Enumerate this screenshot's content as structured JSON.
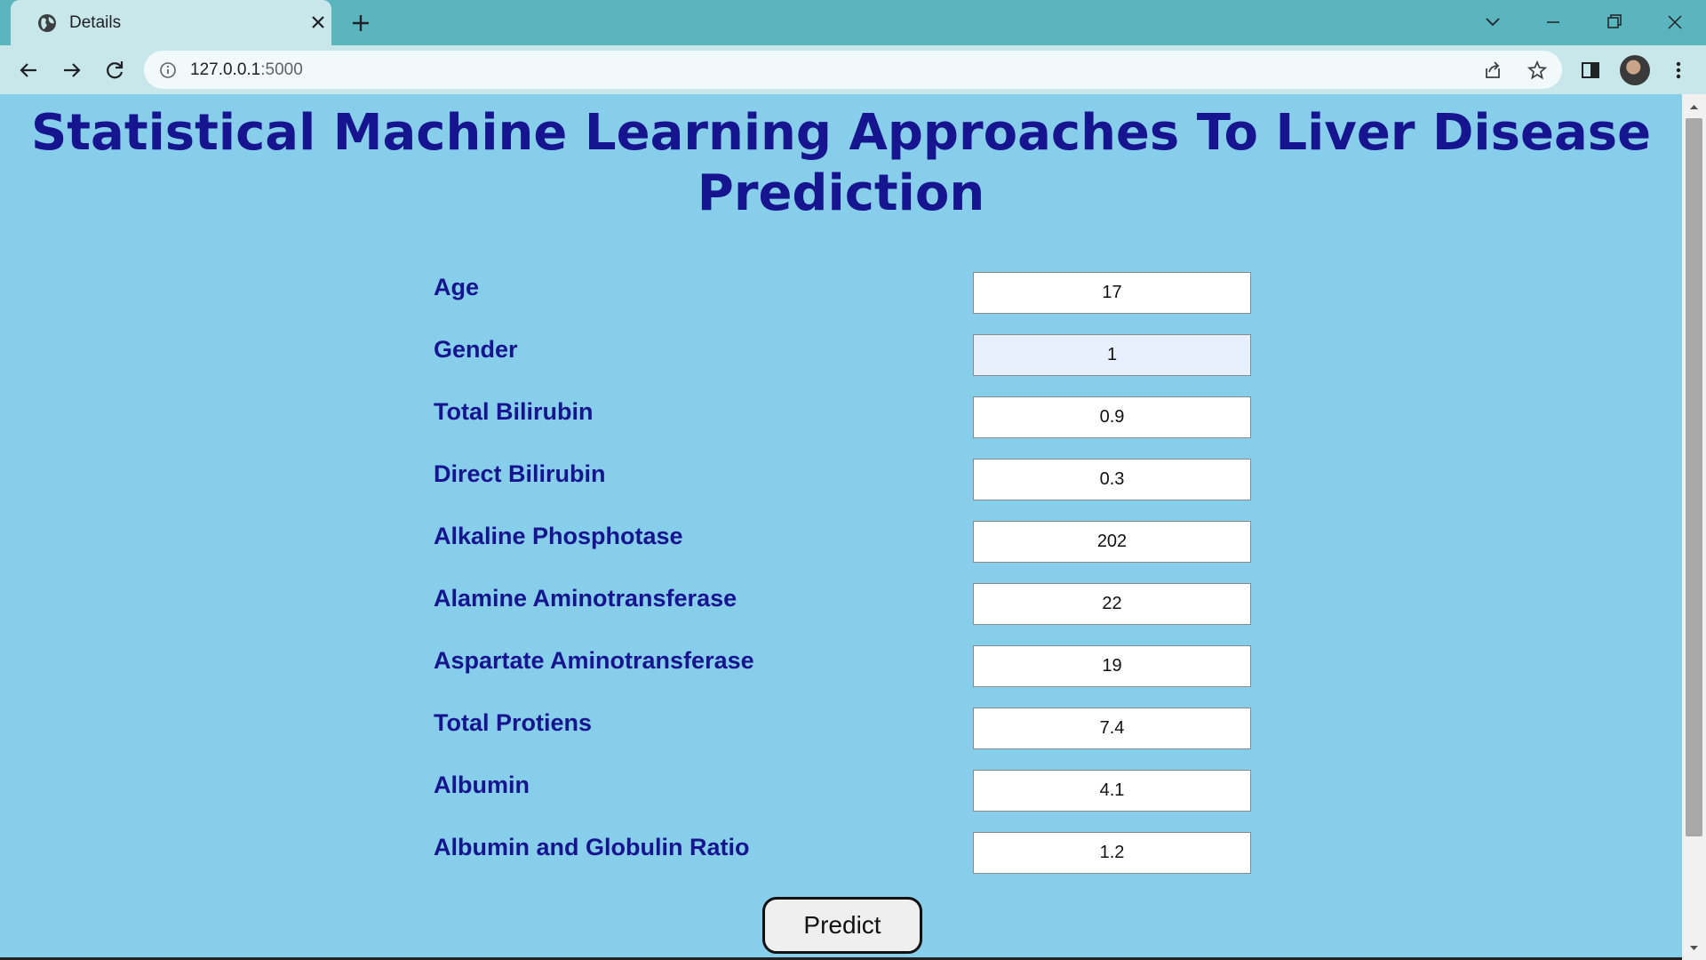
{
  "browser": {
    "tab_title": "Details",
    "url_host": "127.0.0.1",
    "url_port": ":5000",
    "icons": [
      "globe-icon",
      "close-icon",
      "plus-icon",
      "chevron-down-icon",
      "minimize-icon",
      "restore-icon",
      "window-close-icon",
      "back-icon",
      "forward-icon",
      "reload-icon",
      "info-icon",
      "share-icon",
      "star-icon",
      "side-panel-icon",
      "avatar",
      "kebab-menu-icon"
    ]
  },
  "page": {
    "title": "Statistical Machine Learning Approaches To Liver Disease Prediction",
    "fields": [
      {
        "label": "Age",
        "value": "17"
      },
      {
        "label": "Gender",
        "value": "1"
      },
      {
        "label": "Total Bilirubin",
        "value": "0.9"
      },
      {
        "label": "Direct Bilirubin",
        "value": "0.3"
      },
      {
        "label": "Alkaline Phosphotase",
        "value": "202"
      },
      {
        "label": "Alamine Aminotransferase",
        "value": "22"
      },
      {
        "label": "Aspartate Aminotransferase",
        "value": "19"
      },
      {
        "label": "Total Protiens",
        "value": "7.4"
      },
      {
        "label": "Albumin",
        "value": "4.1"
      },
      {
        "label": "Albumin and Globulin Ratio",
        "value": "1.2"
      }
    ],
    "predict_label": "Predict"
  },
  "colors": {
    "page_background": "#87CEEB",
    "heading": "#16148F",
    "tabstrip": "#5BB5BF",
    "toolbar": "#C8E7EA"
  }
}
